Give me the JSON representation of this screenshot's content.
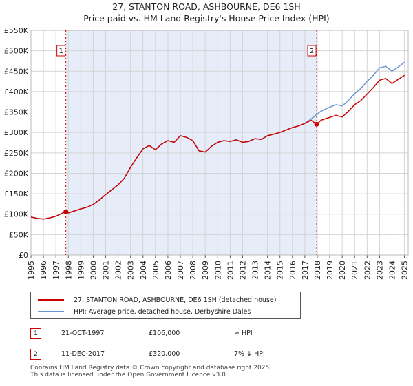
{
  "title": "27, STANTON ROAD, ASHBOURNE, DE6 1SH",
  "subtitle": "Price paid vs. HM Land Registry's House Price Index (HPI)",
  "colors": {
    "price_line": "#cc0000",
    "hpi_line": "#6a96d6",
    "shade": "#e6ecf8",
    "grid": "#d4d4d4",
    "marker_box": "#cc0000"
  },
  "chart_data": {
    "type": "line",
    "title": "27, STANTON ROAD, ASHBOURNE, DE6 1SH",
    "subtitle": "Price paid vs. HM Land Registry's House Price Index (HPI)",
    "xlabel": "",
    "ylabel": "",
    "xlim": [
      1995,
      2025.3
    ],
    "ylim": [
      0,
      550000
    ],
    "y_ticks": [
      0,
      50000,
      100000,
      150000,
      200000,
      250000,
      300000,
      350000,
      400000,
      450000,
      500000,
      550000
    ],
    "y_tick_labels": [
      "£0",
      "£50K",
      "£100K",
      "£150K",
      "£200K",
      "£250K",
      "£300K",
      "£350K",
      "£400K",
      "£450K",
      "£500K",
      "£550K"
    ],
    "x_ticks": [
      1995,
      1996,
      1997,
      1998,
      1999,
      2000,
      2001,
      2002,
      2003,
      2004,
      2005,
      2006,
      2007,
      2008,
      2009,
      2010,
      2011,
      2012,
      2013,
      2014,
      2015,
      2016,
      2017,
      2018,
      2019,
      2020,
      2021,
      2022,
      2023,
      2024,
      2025
    ],
    "x_tick_labels": [
      "1995",
      "1996",
      "1997",
      "1998",
      "1999",
      "2000",
      "2001",
      "2002",
      "2003",
      "2004",
      "2005",
      "2006",
      "2007",
      "2008",
      "2009",
      "2010",
      "2011",
      "2012",
      "2013",
      "2014",
      "2015",
      "2016",
      "2017",
      "2018",
      "2019",
      "2020",
      "2021",
      "2022",
      "2023",
      "2024",
      "2025"
    ],
    "grid": true,
    "shaded_period": [
      1997.8,
      2017.95
    ],
    "series": [
      {
        "name": "27, STANTON ROAD, ASHBOURNE, DE6 1SH (detached house)",
        "color": "#cc0000",
        "x": [
          1995.0,
          1995.5,
          1996.0,
          1996.5,
          1997.0,
          1997.5,
          1997.8,
          1998.0,
          1998.5,
          1999.0,
          1999.5,
          2000.0,
          2000.5,
          2001.0,
          2001.5,
          2002.0,
          2002.5,
          2003.0,
          2003.5,
          2004.0,
          2004.5,
          2005.0,
          2005.5,
          2006.0,
          2006.5,
          2007.0,
          2007.5,
          2008.0,
          2008.5,
          2009.0,
          2009.5,
          2010.0,
          2010.5,
          2011.0,
          2011.5,
          2012.0,
          2012.5,
          2013.0,
          2013.5,
          2014.0,
          2014.5,
          2015.0,
          2015.5,
          2016.0,
          2016.5,
          2017.0,
          2017.5,
          2017.95,
          2018.3,
          2018.7,
          2019.0,
          2019.5,
          2020.0,
          2020.5,
          2021.0,
          2021.5,
          2022.0,
          2022.5,
          2023.0,
          2023.5,
          2024.0,
          2024.5,
          2025.0
        ],
        "values": [
          93000,
          90000,
          88000,
          91000,
          95000,
          102000,
          106000,
          103000,
          108000,
          113000,
          117000,
          124000,
          135000,
          148000,
          160000,
          172000,
          188000,
          215000,
          238000,
          260000,
          268000,
          258000,
          272000,
          280000,
          276000,
          292000,
          288000,
          280000,
          255000,
          252000,
          266000,
          276000,
          280000,
          278000,
          282000,
          276000,
          278000,
          285000,
          283000,
          292000,
          296000,
          300000,
          306000,
          312000,
          316000,
          322000,
          330000,
          320000,
          330000,
          334000,
          337000,
          342000,
          338000,
          352000,
          368000,
          378000,
          394000,
          410000,
          428000,
          432000,
          420000,
          430000,
          440000
        ]
      },
      {
        "name": "HPI: Average price, detached house, Derbyshire Dales",
        "color": "#6a96d6",
        "x": [
          1995.0,
          1995.5,
          1996.0,
          1996.5,
          1997.0,
          1997.5,
          1997.8,
          1998.0,
          1998.5,
          1999.0,
          1999.5,
          2000.0,
          2000.5,
          2001.0,
          2001.5,
          2002.0,
          2002.5,
          2003.0,
          2003.5,
          2004.0,
          2004.5,
          2005.0,
          2005.5,
          2006.0,
          2006.5,
          2007.0,
          2007.5,
          2008.0,
          2008.5,
          2009.0,
          2009.5,
          2010.0,
          2010.5,
          2011.0,
          2011.5,
          2012.0,
          2012.5,
          2013.0,
          2013.5,
          2014.0,
          2014.5,
          2015.0,
          2015.5,
          2016.0,
          2016.5,
          2017.0,
          2017.5,
          2017.95,
          2018.3,
          2018.7,
          2019.0,
          2019.5,
          2020.0,
          2020.5,
          2021.0,
          2021.5,
          2022.0,
          2022.5,
          2023.0,
          2023.5,
          2024.0,
          2024.5,
          2025.0
        ],
        "values": [
          93000,
          90000,
          88000,
          91000,
          95000,
          102000,
          106000,
          103000,
          108000,
          113000,
          117000,
          124000,
          135000,
          148000,
          160000,
          172000,
          188000,
          215000,
          238000,
          260000,
          268000,
          258000,
          272000,
          280000,
          276000,
          292000,
          288000,
          280000,
          255000,
          252000,
          266000,
          276000,
          280000,
          278000,
          282000,
          276000,
          278000,
          285000,
          283000,
          292000,
          296000,
          300000,
          306000,
          312000,
          316000,
          322000,
          333000,
          344000,
          352000,
          358000,
          362000,
          368000,
          365000,
          378000,
          395000,
          408000,
          425000,
          440000,
          458000,
          462000,
          450000,
          460000,
          472000
        ]
      }
    ],
    "annotations": [
      {
        "label": "1",
        "x": 1997.8,
        "y": 106000
      },
      {
        "label": "2",
        "x": 2017.95,
        "y": 320000
      }
    ]
  },
  "legend": {
    "items": [
      {
        "label": "27, STANTON ROAD, ASHBOURNE, DE6 1SH (detached house)",
        "color": "#cc0000"
      },
      {
        "label": "HPI: Average price, detached house, Derbyshire Dales",
        "color": "#6a96d6"
      }
    ]
  },
  "sales": [
    {
      "num": "1",
      "date": "21-OCT-1997",
      "price": "£106,000",
      "hpi": "≈ HPI"
    },
    {
      "num": "2",
      "date": "11-DEC-2017",
      "price": "£320,000",
      "hpi": "7% ↓ HPI"
    }
  ],
  "footer": {
    "line1": "Contains HM Land Registry data © Crown copyright and database right 2025.",
    "line2": "This data is licensed under the Open Government Licence v3.0."
  }
}
